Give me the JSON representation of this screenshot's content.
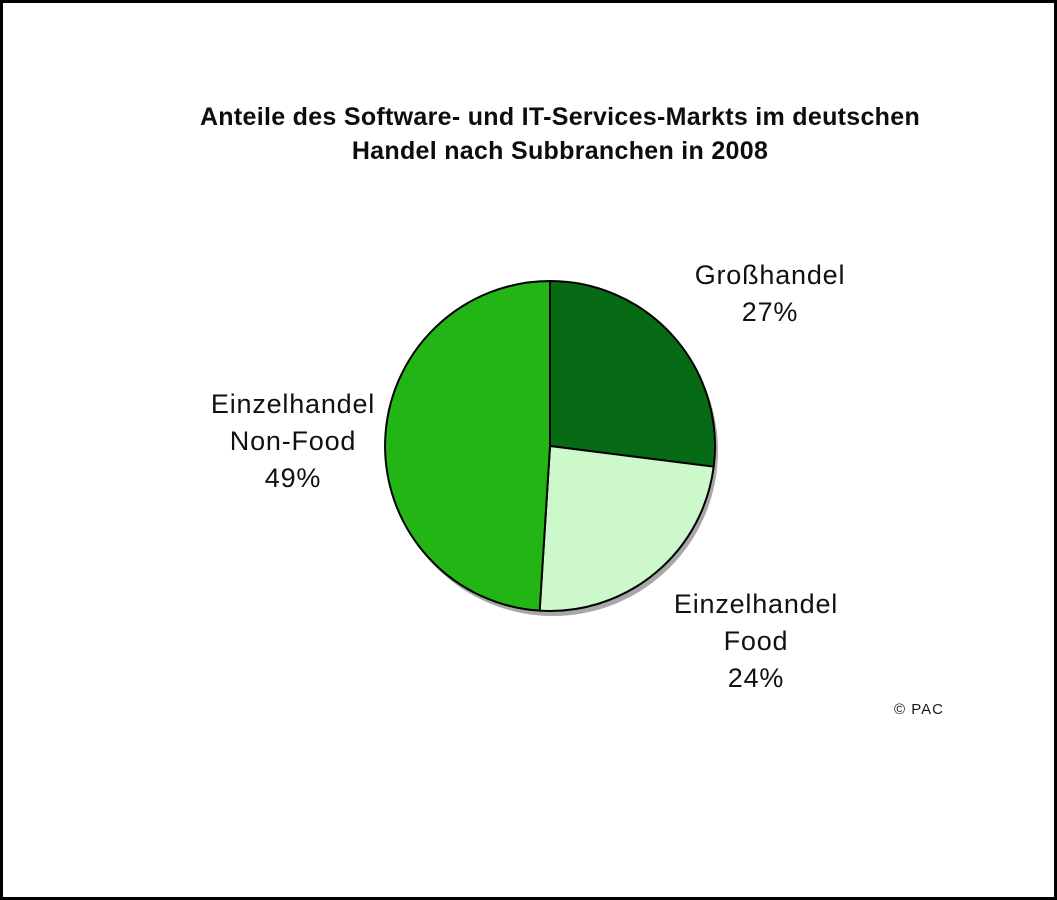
{
  "page": {
    "background_color": "#ffffff",
    "border_color": "#000000"
  },
  "title": {
    "lines": [
      "Anteile des Software- und IT-Services-Markts im deutschen",
      "Handel nach Subbranchen in 2008"
    ]
  },
  "copyright": "© PAC",
  "chart_data": {
    "type": "pie",
    "title": "Anteile des Software- und IT-Services-Markts im deutschen Handel nach Subbranchen in 2008",
    "unit": "%",
    "start_angle": "12 o'clock",
    "direction": "clockwise",
    "legend": "none",
    "labels_position": "outside",
    "outline_color": "#000000",
    "shadow_color": "#a8a8a8",
    "slices": [
      {
        "label": "Großhandel",
        "value_pct": 27,
        "color": "#076b15",
        "label_lines": [
          "Großhandel",
          "27%"
        ]
      },
      {
        "label": "Einzelhandel Food",
        "value_pct": 24,
        "color": "#ccf8cc",
        "label_lines": [
          "Einzelhandel",
          "Food",
          "24%"
        ]
      },
      {
        "label": "Einzelhandel Non-Food",
        "value_pct": 49,
        "color": "#23b515",
        "label_lines": [
          "Einzelhandel",
          "Non-Food",
          "49%"
        ]
      }
    ]
  }
}
